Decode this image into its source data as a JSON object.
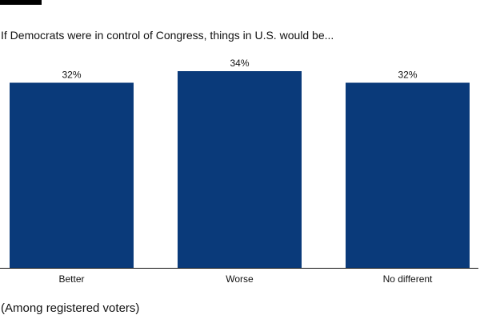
{
  "subtitle": "If Democrats were in control of Congress, things in U.S. would be...",
  "footnote": "(Among registered voters)",
  "colors": {
    "bar": "#0a3a7a",
    "axis": "#111111",
    "text": "#111111"
  },
  "chart_data": {
    "type": "bar",
    "title": "",
    "xlabel": "",
    "ylabel": "",
    "categories": [
      "Better",
      "Worse",
      "No different"
    ],
    "values": [
      32,
      34,
      32
    ],
    "value_labels": [
      "32%",
      "34%",
      "32%"
    ],
    "ylim": [
      0,
      34
    ],
    "grid": false,
    "legend": "none"
  }
}
